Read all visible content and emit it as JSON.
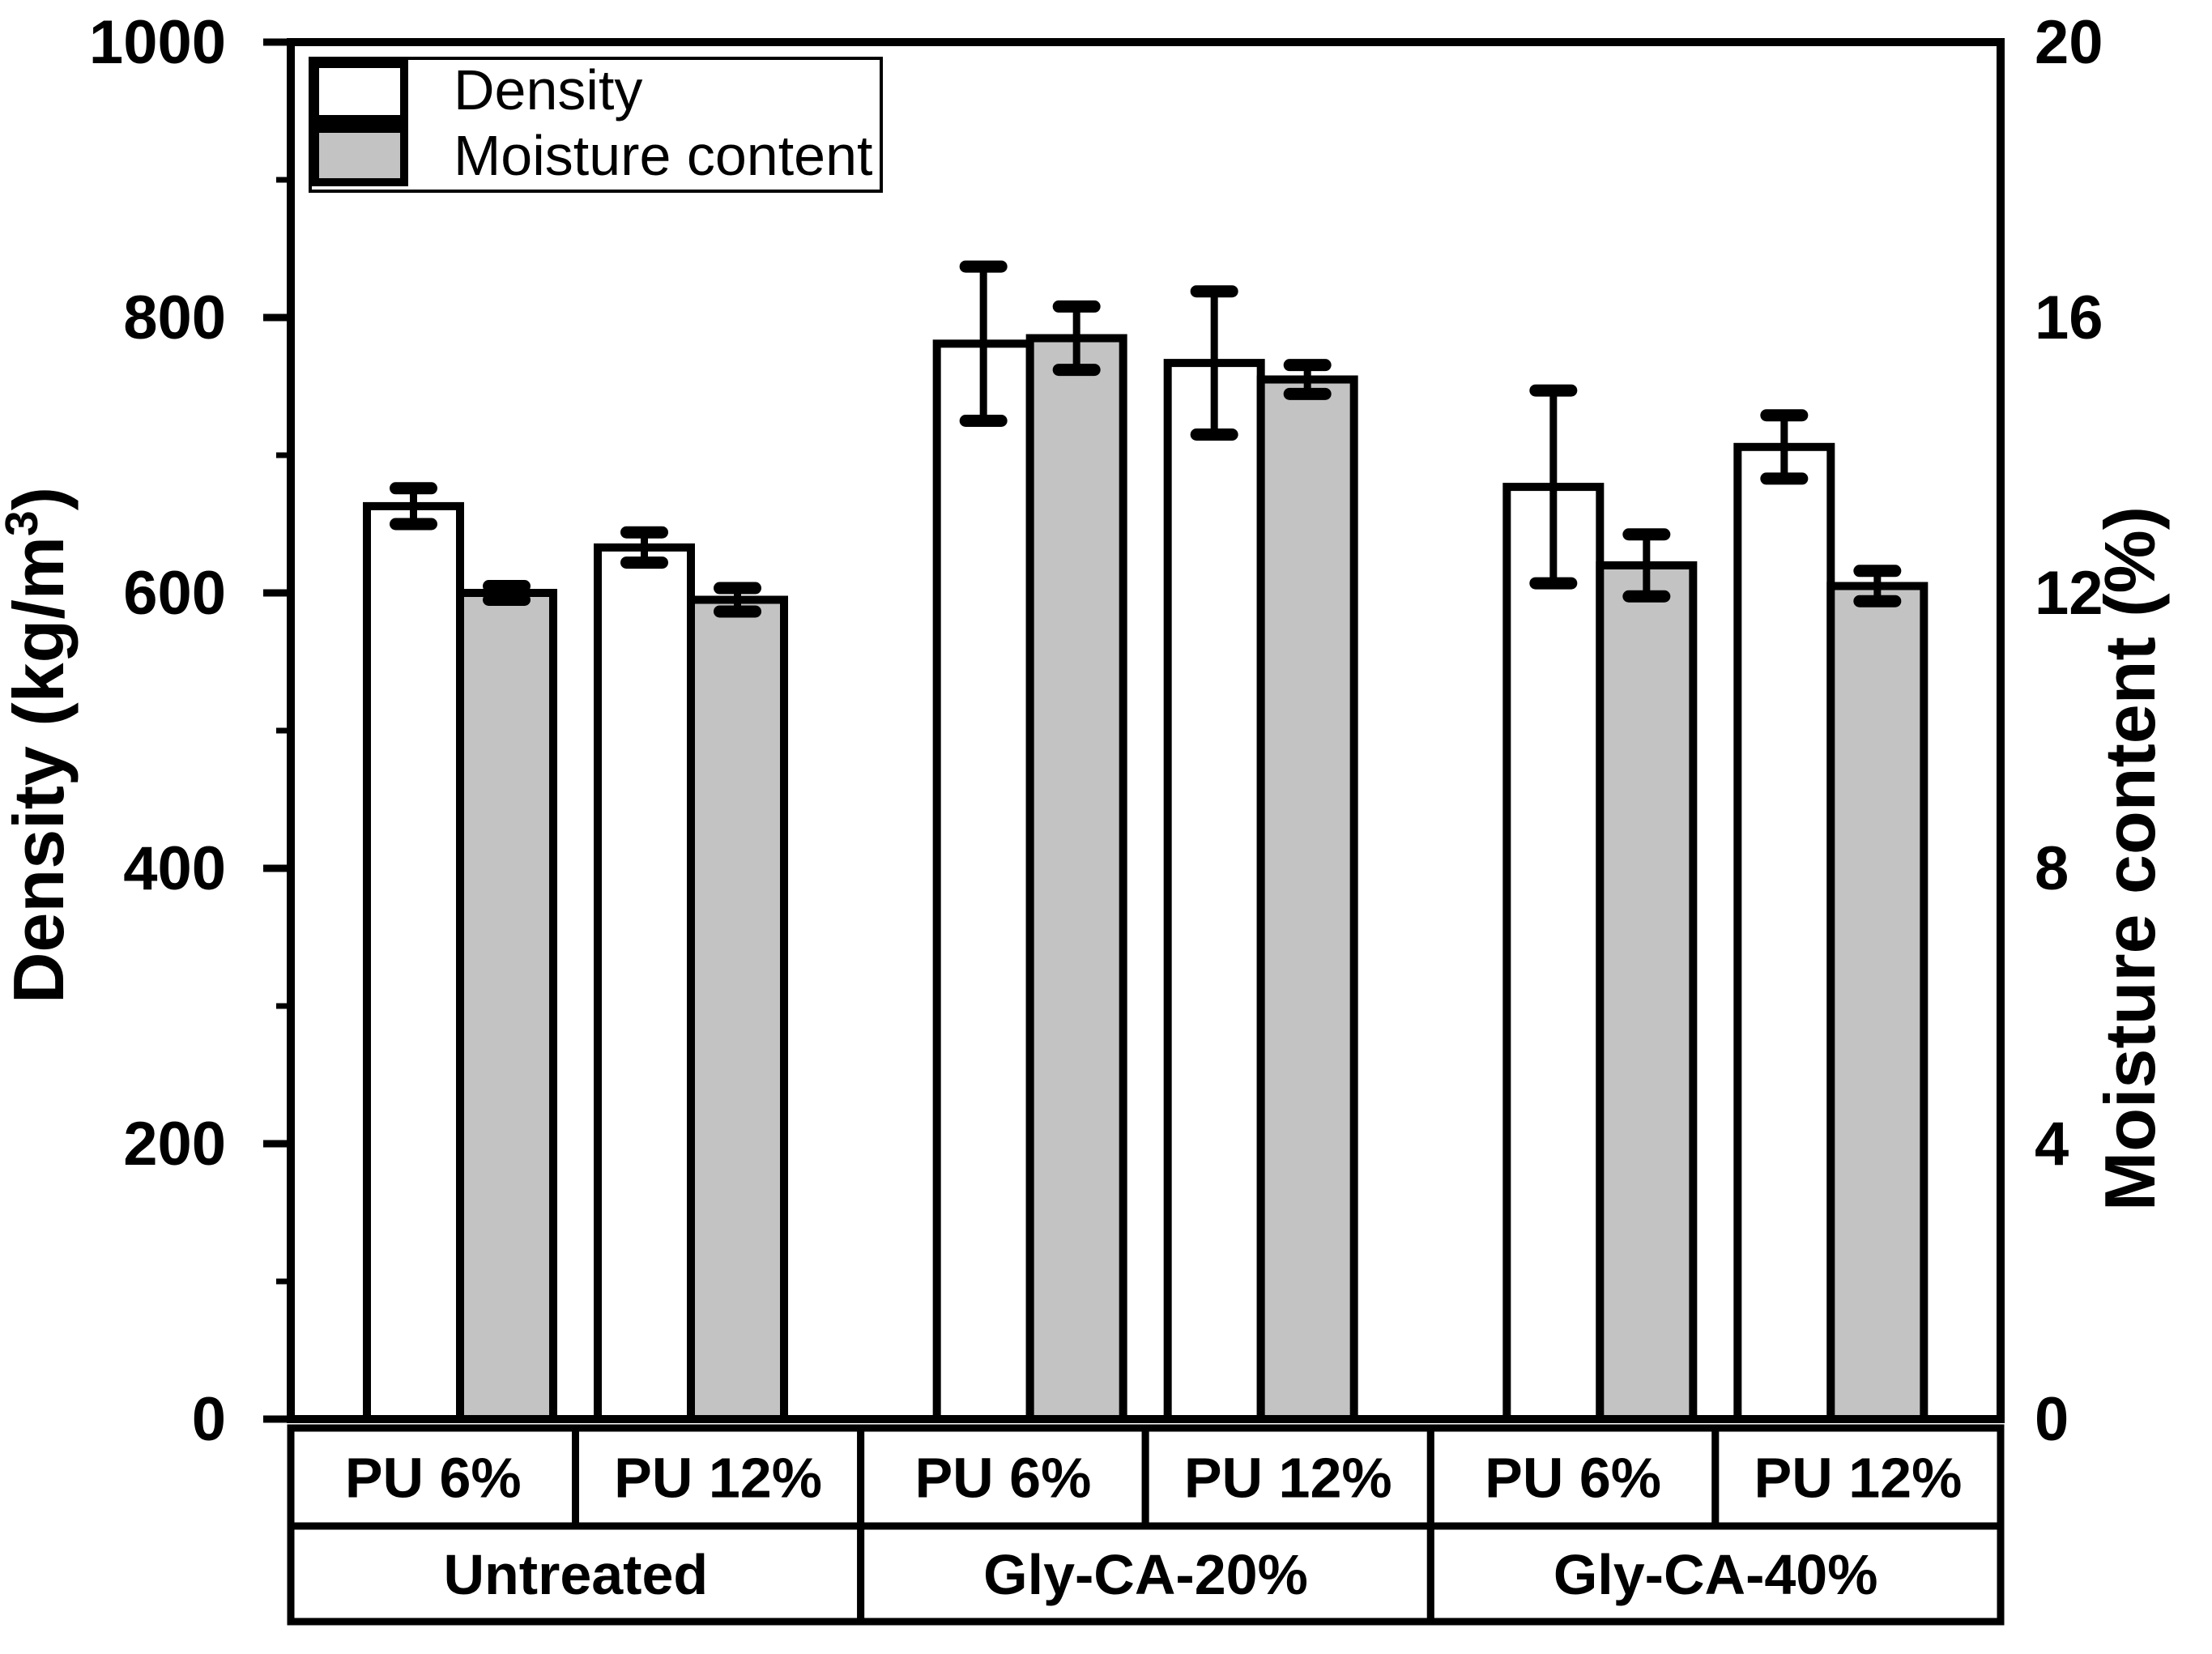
{
  "chart_data": {
    "type": "bar",
    "dual_axis": true,
    "title": "",
    "left_axis": {
      "label": "Density (kg/m³)",
      "min": 0,
      "max": 1000,
      "major_ticks": [
        0,
        200,
        400,
        600,
        800,
        1000
      ],
      "minor_ticks": [
        100,
        300,
        500,
        700,
        900
      ]
    },
    "right_axis": {
      "label": "Moisture content (%)",
      "min": 0,
      "max": 20,
      "major_ticks": [
        0,
        4,
        8,
        12,
        16,
        20
      ]
    },
    "legend": {
      "position": "top-left",
      "items": [
        {
          "label": "Density",
          "fill": "#ffffff"
        },
        {
          "label": "Moisture content",
          "fill": "#c3c3c3"
        }
      ]
    },
    "grid": false,
    "groups": [
      {
        "label": "Untreated",
        "bars": [
          {
            "label": "PU 6%",
            "density": 663,
            "density_err": 13,
            "moisture": 12.0,
            "moisture_err": 0.1
          },
          {
            "label": "PU 12%",
            "density": 633,
            "density_err": 11,
            "moisture": 11.9,
            "moisture_err": 0.17
          }
        ]
      },
      {
        "label": "Gly-CA-20%",
        "bars": [
          {
            "label": "PU 6%",
            "density": 781,
            "density_err": 56,
            "moisture": 15.7,
            "moisture_err": 0.46
          },
          {
            "label": "PU 12%",
            "density": 767,
            "density_err": 52,
            "moisture": 15.1,
            "moisture_err": 0.21
          }
        ]
      },
      {
        "label": "Gly-CA-40%",
        "bars": [
          {
            "label": "PU 6%",
            "density": 677,
            "density_err": 70,
            "moisture": 12.4,
            "moisture_err": 0.45
          },
          {
            "label": "PU 12%",
            "density": 706,
            "density_err": 23,
            "moisture": 12.1,
            "moisture_err": 0.22
          }
        ]
      }
    ],
    "series": [
      {
        "name": "Density",
        "axis": "left",
        "fill": "#ffffff"
      },
      {
        "name": "Moisture content",
        "axis": "right",
        "fill": "#c3c3c3"
      }
    ],
    "colors": {
      "stroke": "#000000",
      "density_fill": "#ffffff",
      "moisture_fill": "#c3c3c3",
      "background": "#ffffff"
    }
  }
}
